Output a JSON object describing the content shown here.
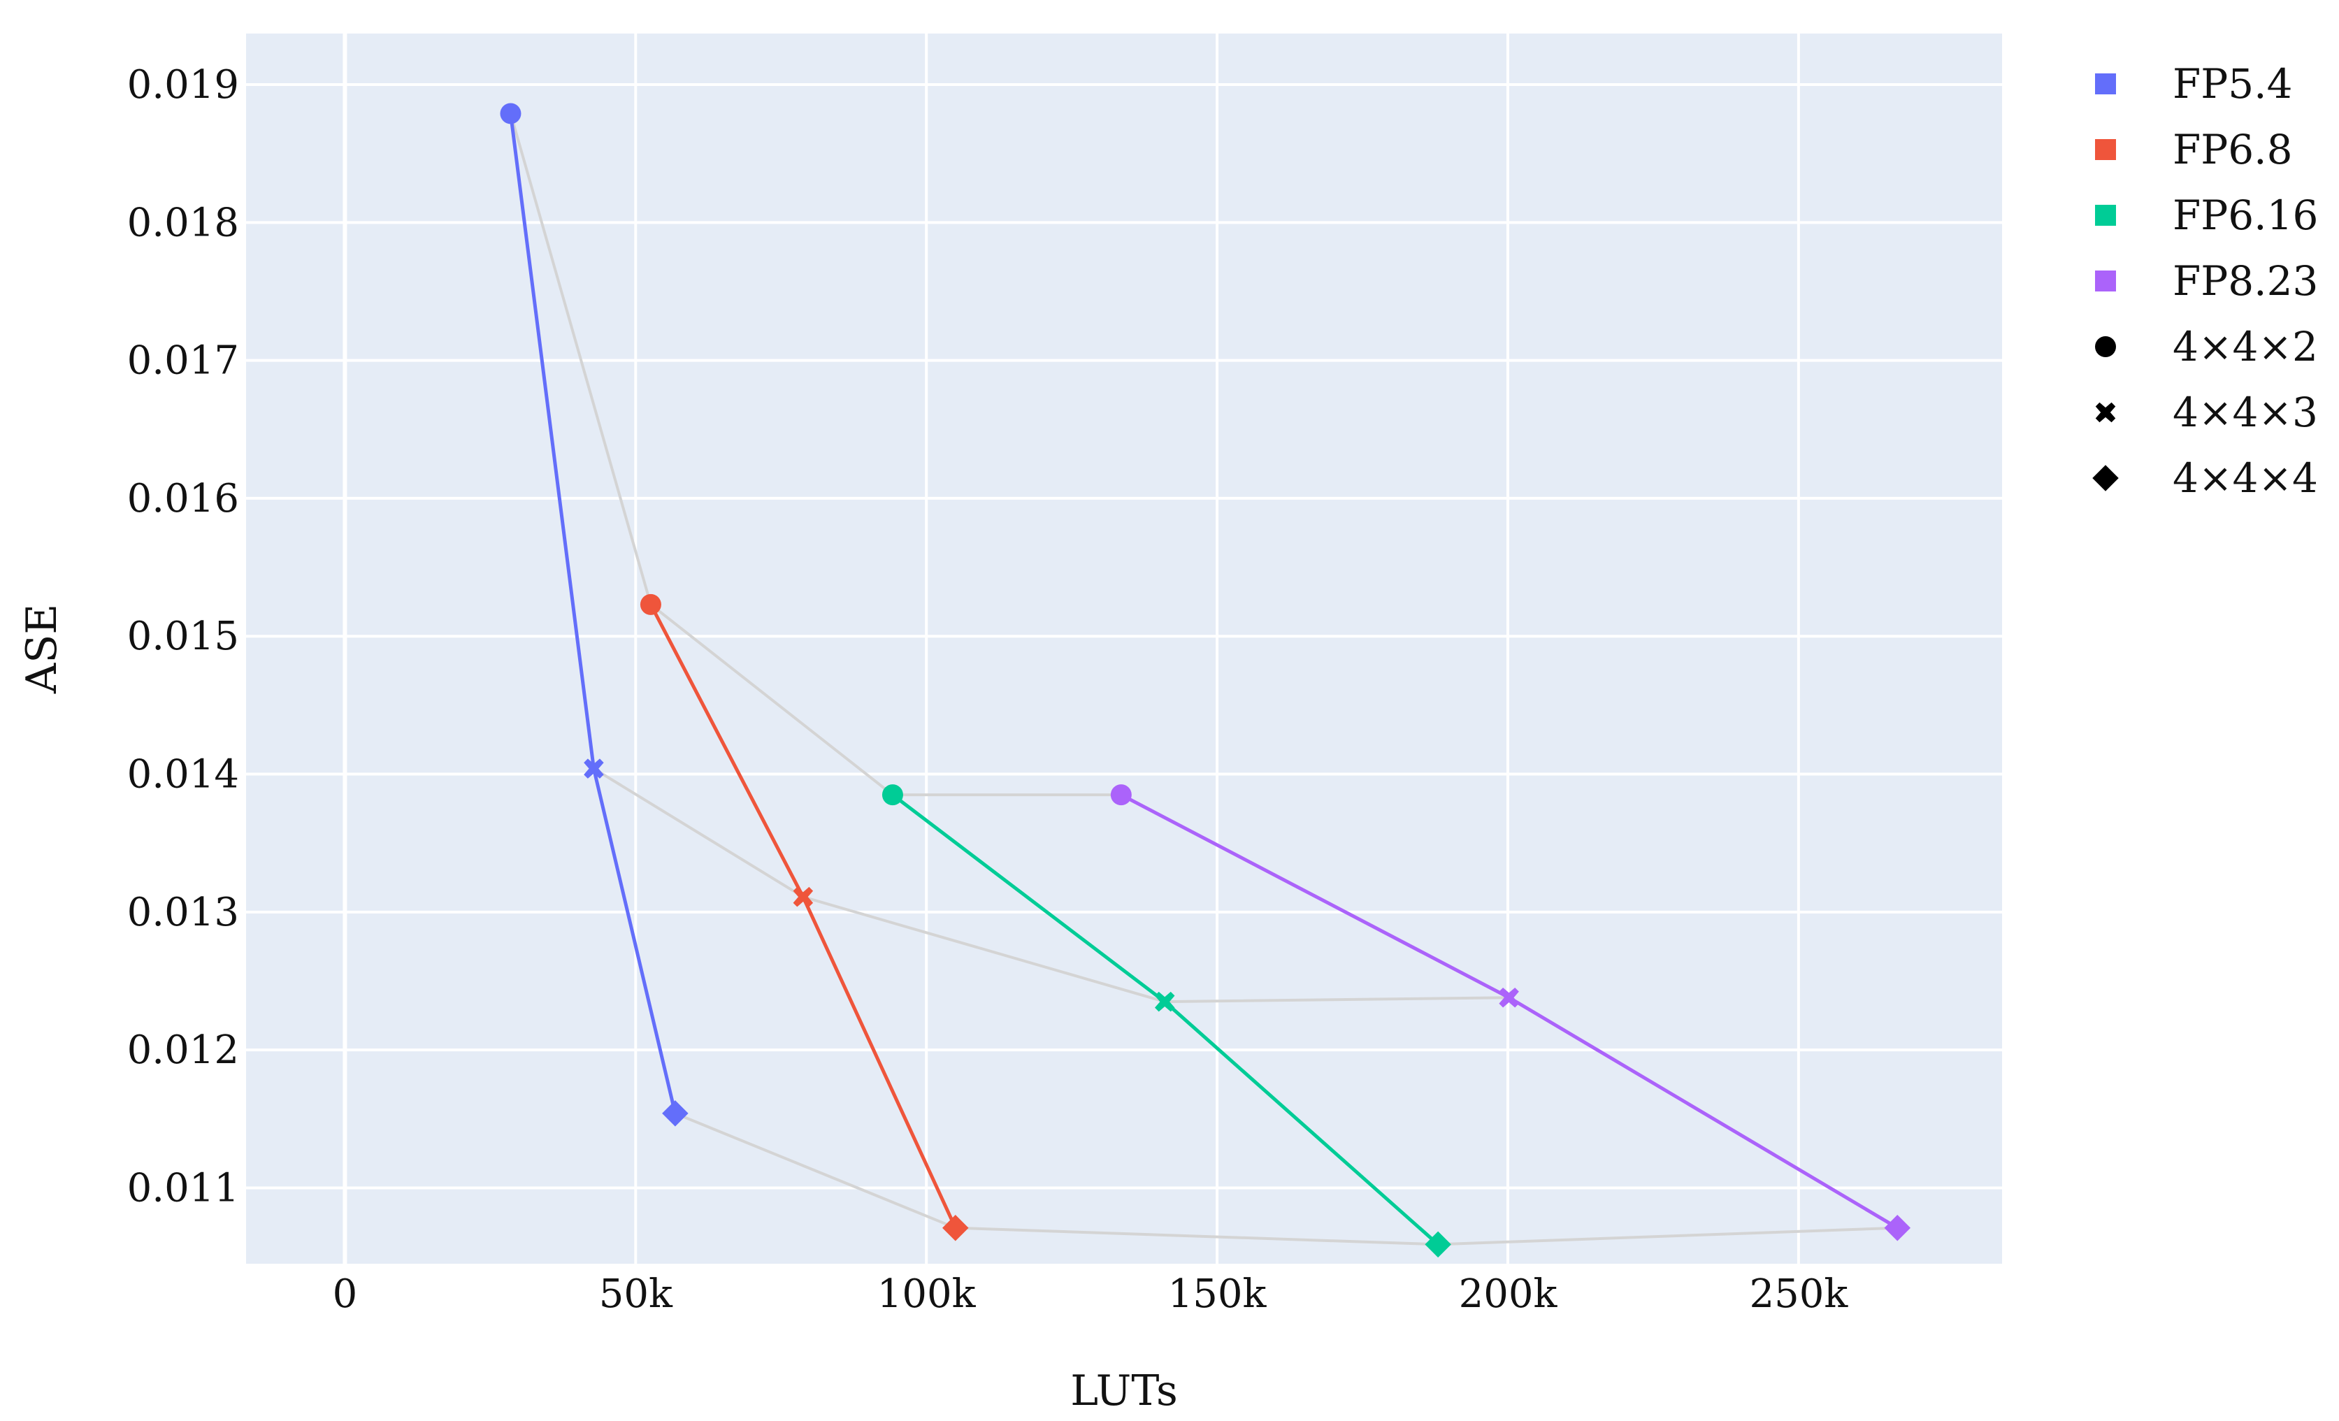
{
  "chart_data": {
    "type": "scatter",
    "xlabel": "LUTs",
    "ylabel": "ASE",
    "xlim": [
      -17000,
      285000
    ],
    "ylim": [
      0.01045,
      0.01937
    ],
    "x_ticks": [
      {
        "value": 0,
        "label": "0"
      },
      {
        "value": 50000,
        "label": "50k"
      },
      {
        "value": 100000,
        "label": "100k"
      },
      {
        "value": 150000,
        "label": "150k"
      },
      {
        "value": 200000,
        "label": "200k"
      },
      {
        "value": 250000,
        "label": "250k"
      }
    ],
    "y_ticks": [
      {
        "value": 0.011,
        "label": "0.011"
      },
      {
        "value": 0.012,
        "label": "0.012"
      },
      {
        "value": 0.013,
        "label": "0.013"
      },
      {
        "value": 0.014,
        "label": "0.014"
      },
      {
        "value": 0.015,
        "label": "0.015"
      },
      {
        "value": 0.016,
        "label": "0.016"
      },
      {
        "value": 0.017,
        "label": "0.017"
      },
      {
        "value": 0.018,
        "label": "0.018"
      },
      {
        "value": 0.019,
        "label": "0.019"
      }
    ],
    "grid": true,
    "legend_position": "right",
    "background": "#e5ecf6",
    "series": [
      {
        "name": "FP5.4",
        "color": "#636efa",
        "points": [
          {
            "x": 28500,
            "y": 0.01879,
            "shape": "circle"
          },
          {
            "x": 42800,
            "y": 0.01404,
            "shape": "x"
          },
          {
            "x": 56800,
            "y": 0.01154,
            "shape": "diamond"
          }
        ]
      },
      {
        "name": "FP6.8",
        "color": "#ef553b",
        "points": [
          {
            "x": 52600,
            "y": 0.01523,
            "shape": "circle"
          },
          {
            "x": 78800,
            "y": 0.01311,
            "shape": "x"
          },
          {
            "x": 105000,
            "y": 0.01071,
            "shape": "diamond"
          }
        ]
      },
      {
        "name": "FP6.16",
        "color": "#00cc96",
        "points": [
          {
            "x": 94200,
            "y": 0.01385,
            "shape": "circle"
          },
          {
            "x": 141000,
            "y": 0.01235,
            "shape": "x"
          },
          {
            "x": 188000,
            "y": 0.01059,
            "shape": "diamond"
          }
        ]
      },
      {
        "name": "FP8.23",
        "color": "#ab63fa",
        "points": [
          {
            "x": 133500,
            "y": 0.01385,
            "shape": "circle"
          },
          {
            "x": 200200,
            "y": 0.01238,
            "shape": "x"
          },
          {
            "x": 267000,
            "y": 0.01071,
            "shape": "diamond"
          }
        ]
      }
    ],
    "connector_color": "#d4d4d4",
    "connectors": [
      {
        "name": "4×4×2",
        "x": [
          28500,
          52600,
          94200,
          133500
        ],
        "y": [
          0.01879,
          0.01523,
          0.01385,
          0.01385
        ]
      },
      {
        "name": "4×4×3",
        "x": [
          42800,
          78800,
          141000,
          200200
        ],
        "y": [
          0.01404,
          0.01311,
          0.01235,
          0.01238
        ]
      },
      {
        "name": "4×4×4",
        "x": [
          56800,
          105000,
          188000,
          267000
        ],
        "y": [
          0.01154,
          0.01071,
          0.01059,
          0.01071
        ]
      }
    ],
    "legend": [
      {
        "label": "FP5.4",
        "symbol": "square",
        "color": "#636efa"
      },
      {
        "label": "FP6.8",
        "symbol": "square",
        "color": "#ef553b"
      },
      {
        "label": "FP6.16",
        "symbol": "square",
        "color": "#00cc96"
      },
      {
        "label": "FP8.23",
        "symbol": "square",
        "color": "#ab63fa"
      },
      {
        "label": "4×4×2",
        "symbol": "circle",
        "color": "#000000"
      },
      {
        "label": "4×4×3",
        "symbol": "x",
        "color": "#000000"
      },
      {
        "label": "4×4×4",
        "symbol": "diamond",
        "color": "#000000"
      }
    ]
  }
}
